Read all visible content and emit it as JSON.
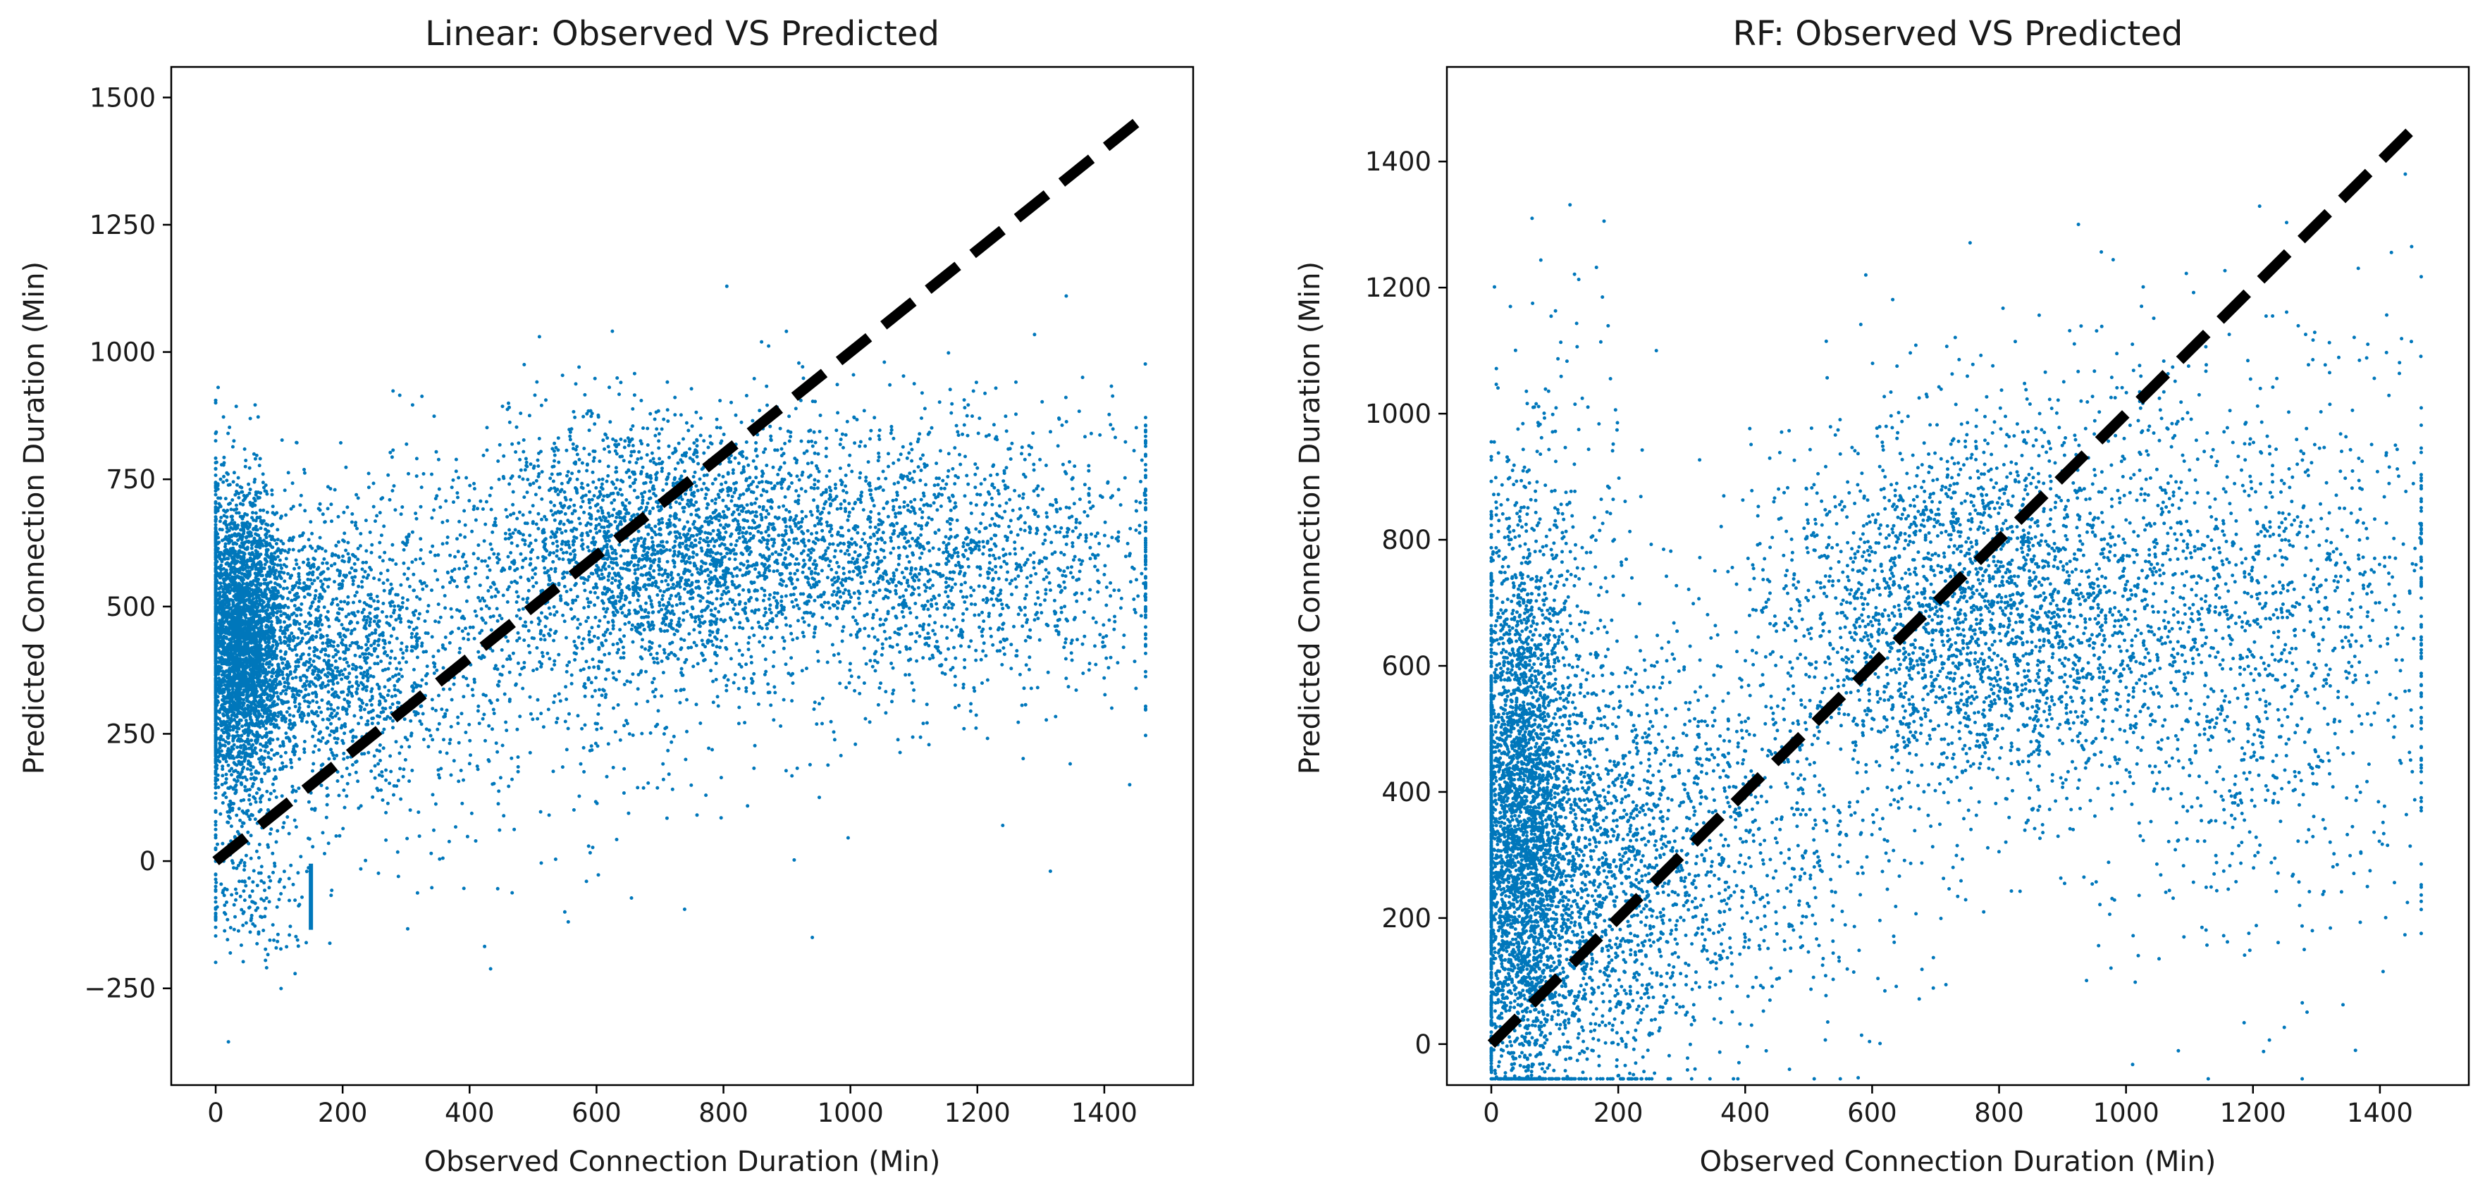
{
  "figure": {
    "point_color": "#0077BB",
    "reference_line_color": "#000000"
  },
  "chart_data": [
    {
      "type": "scatter",
      "title": "Linear: Observed VS Predicted",
      "xlabel": "Observed Connection Duration (Min)",
      "ylabel": "Predicted Connection Duration (Min)",
      "xlim": [
        -70,
        1540
      ],
      "ylim": [
        -440,
        1560
      ],
      "xticks": [
        0,
        200,
        400,
        600,
        800,
        1000,
        1200,
        1400
      ],
      "yticks": [
        -250,
        0,
        250,
        500,
        750,
        1000,
        1250,
        1500
      ],
      "reference_line": {
        "x": [
          0,
          1465
        ],
        "y": [
          0,
          1465
        ],
        "style": "dashed"
      },
      "clusters": [
        {
          "x_center": 40,
          "x_spread": 35,
          "y_center": 430,
          "y_spread": 150,
          "n": 3400
        },
        {
          "x_center": 180,
          "x_spread": 90,
          "y_center": 420,
          "y_spread": 140,
          "n": 1300
        },
        {
          "x_center": 700,
          "x_spread": 160,
          "y_center": 620,
          "y_spread": 130,
          "n": 2600
        },
        {
          "x_center": 1150,
          "x_spread": 190,
          "y_center": 590,
          "y_spread": 140,
          "n": 1700
        },
        {
          "x_center": 400,
          "x_spread": 250,
          "y_center": 330,
          "y_spread": 170,
          "n": 650
        },
        {
          "x_center": 60,
          "x_spread": 50,
          "y_center": -80,
          "y_spread": 70,
          "n": 170
        }
      ],
      "outliers": [
        {
          "x": 20,
          "y": -355
        },
        {
          "x": 510,
          "y": 1030
        },
        {
          "x": 940,
          "y": -150
        },
        {
          "x": 1340,
          "y": 1110
        },
        {
          "x": 1315,
          "y": -20
        },
        {
          "x": 1240,
          "y": 70
        },
        {
          "x": 1440,
          "y": 150
        },
        {
          "x": 290,
          "y": 915
        },
        {
          "x": 860,
          "y": 1020
        },
        {
          "x": 550,
          "y": -100
        }
      ],
      "vertical_segment": {
        "x": 150,
        "y_from": -135,
        "y_to": -5
      }
    },
    {
      "type": "scatter",
      "title": "RF: Observed VS Predicted",
      "xlabel": "Observed Connection Duration (Min)",
      "ylabel": "Predicted Connection Duration (Min)",
      "xlim": [
        -70,
        1540
      ],
      "ylim": [
        -65,
        1550
      ],
      "xticks": [
        0,
        200,
        400,
        600,
        800,
        1000,
        1200,
        1400
      ],
      "yticks": [
        0,
        200,
        400,
        600,
        800,
        1000,
        1200,
        1400
      ],
      "reference_line": {
        "x": [
          0,
          1465
        ],
        "y": [
          0,
          1465
        ],
        "style": "dashed"
      },
      "clusters": [
        {
          "x_center": 45,
          "x_spread": 40,
          "y_center": 330,
          "y_spread": 230,
          "n": 3400
        },
        {
          "x_center": 170,
          "x_spread": 90,
          "y_center": 250,
          "y_spread": 170,
          "n": 1500
        },
        {
          "x_center": 760,
          "x_spread": 160,
          "y_center": 690,
          "y_spread": 150,
          "n": 2600
        },
        {
          "x_center": 1180,
          "x_spread": 180,
          "y_center": 650,
          "y_spread": 220,
          "n": 1500
        },
        {
          "x_center": 380,
          "x_spread": 140,
          "y_center": 330,
          "y_spread": 160,
          "n": 700
        },
        {
          "x_center": 100,
          "x_spread": 60,
          "y_center": 750,
          "y_spread": 200,
          "n": 300
        }
      ],
      "outliers": [
        {
          "x": 30,
          "y": 1170
        },
        {
          "x": 65,
          "y": 1175
        },
        {
          "x": 175,
          "y": 1185
        },
        {
          "x": 590,
          "y": 1220
        },
        {
          "x": 1440,
          "y": 1380
        },
        {
          "x": 1450,
          "y": 1265
        },
        {
          "x": 1405,
          "y": 115
        },
        {
          "x": 260,
          "y": 1100
        },
        {
          "x": 410,
          "y": 30
        },
        {
          "x": 530,
          "y": 35
        }
      ]
    }
  ]
}
